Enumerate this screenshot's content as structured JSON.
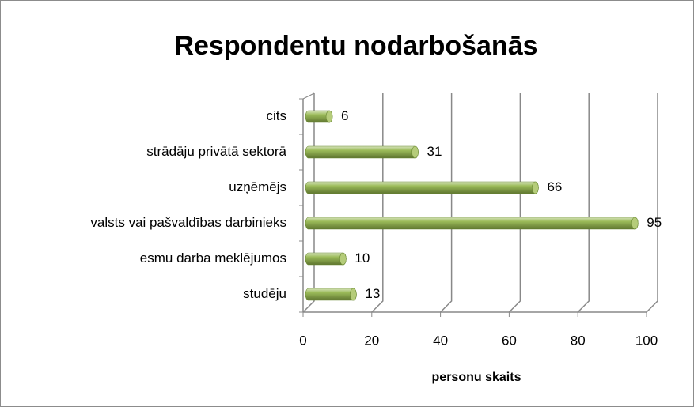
{
  "chart_data": {
    "type": "bar",
    "orientation": "horizontal",
    "title": "Respondentu nodarbošanās",
    "categories": [
      "cits",
      "strādāju privātā sektorā",
      "uzņēmējs",
      "valsts vai pašvaldības darbinieks",
      "esmu darba meklējumos",
      "studēju"
    ],
    "values": [
      6,
      31,
      66,
      95,
      10,
      13
    ],
    "color": "#9bbb59",
    "xlabel": "personu skaits",
    "xlim": [
      0,
      100
    ],
    "xticks": [
      0,
      20,
      40,
      60,
      80,
      100
    ],
    "grid": true
  }
}
